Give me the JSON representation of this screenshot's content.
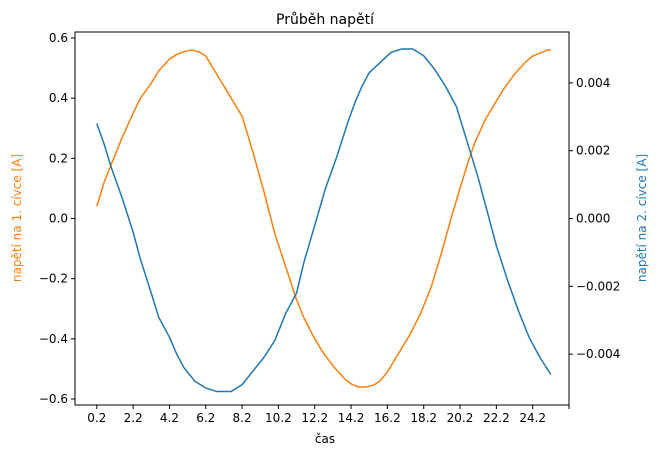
{
  "chart_data": {
    "type": "line",
    "title": "Průběh napětí",
    "xlabel": "čas",
    "ylabel_left": "napětí na 1. cívce [A]",
    "ylabel_right": "napětí na 2. cívce [A]",
    "xlim": [
      -1.0,
      26.2
    ],
    "ylim_left": [
      -0.62,
      0.62
    ],
    "ylim_right": [
      -0.0055,
      0.0055
    ],
    "x_ticks": [
      0.2,
      2.2,
      4.2,
      6.2,
      8.2,
      10.2,
      12.2,
      14.2,
      16.2,
      18.2,
      20.2,
      22.2,
      24.2,
      26.2
    ],
    "x_tick_labels": [
      "0.2",
      "2.2",
      "4.2",
      "6.2",
      "8.2",
      "10.2",
      "12.2",
      "14.2",
      "16.2",
      "18.2",
      "20.2",
      "22.2",
      "24.2",
      ""
    ],
    "y_ticks_left": [
      -0.6,
      -0.4,
      -0.2,
      0.0,
      0.2,
      0.4,
      0.6
    ],
    "y_tick_labels_left": [
      "−0.6",
      "−0.4",
      "−0.2",
      "0.0",
      "0.2",
      "0.4",
      "0.6"
    ],
    "y_ticks_right": [
      -0.004,
      -0.002,
      0.0,
      0.002,
      0.004
    ],
    "y_tick_labels_right": [
      "−0.004",
      "−0.002",
      "0.000",
      "0.002",
      "0.004"
    ],
    "grid": false,
    "colors": {
      "series1": "#ff7f0e",
      "series2": "#1f77b4"
    },
    "series": [
      {
        "axis": "left",
        "color": "#ff7f0e",
        "x": [
          0.2,
          0.6,
          1.0,
          1.6,
          2.2,
          2.6,
          3.2,
          3.6,
          4.2,
          4.6,
          5.0,
          5.4,
          5.8,
          6.2,
          6.6,
          7.0,
          7.6,
          8.2,
          8.8,
          9.4,
          10.0,
          10.6,
          11.2,
          11.6,
          12.2,
          12.6,
          13.2,
          13.8,
          14.2,
          14.6,
          15.0,
          15.4,
          15.8,
          16.2,
          16.8,
          17.4,
          18.0,
          18.6,
          19.2,
          19.8,
          20.2,
          20.6,
          21.0,
          21.6,
          22.2,
          22.6,
          23.2,
          23.8,
          24.2,
          24.6,
          25.0,
          25.2
        ],
        "y": [
          0.04,
          0.12,
          0.18,
          0.27,
          0.35,
          0.4,
          0.45,
          0.49,
          0.53,
          0.545,
          0.555,
          0.56,
          0.555,
          0.54,
          0.5,
          0.46,
          0.4,
          0.34,
          0.22,
          0.09,
          -0.05,
          -0.16,
          -0.27,
          -0.33,
          -0.4,
          -0.44,
          -0.49,
          -0.53,
          -0.55,
          -0.56,
          -0.56,
          -0.555,
          -0.54,
          -0.51,
          -0.45,
          -0.39,
          -0.32,
          -0.23,
          -0.11,
          0.02,
          0.1,
          0.18,
          0.25,
          0.33,
          0.39,
          0.43,
          0.48,
          0.52,
          0.54,
          0.55,
          0.56,
          0.56
        ]
      },
      {
        "axis": "right",
        "color": "#1f77b4",
        "x": [
          0.2,
          0.6,
          1.0,
          1.6,
          2.2,
          2.6,
          3.2,
          3.6,
          4.2,
          4.6,
          5.0,
          5.6,
          6.2,
          6.8,
          7.6,
          8.2,
          8.8,
          9.4,
          10.0,
          10.6,
          11.2,
          11.6,
          12.2,
          12.8,
          13.4,
          14.0,
          14.4,
          14.8,
          15.2,
          15.8,
          16.4,
          17.0,
          17.6,
          18.2,
          18.8,
          19.4,
          20.0,
          20.4,
          20.8,
          21.2,
          21.6,
          22.2,
          22.8,
          23.4,
          24.0,
          24.6,
          25.2
        ],
        "y": [
          0.0028,
          0.0022,
          0.0015,
          0.0006,
          -0.0004,
          -0.0012,
          -0.0022,
          -0.0029,
          -0.0035,
          -0.004,
          -0.0044,
          -0.0048,
          -0.005,
          -0.0051,
          -0.0051,
          -0.0049,
          -0.0045,
          -0.0041,
          -0.0036,
          -0.0028,
          -0.0022,
          -0.0013,
          -0.0002,
          0.0009,
          0.0018,
          0.0028,
          0.0034,
          0.0039,
          0.0043,
          0.0046,
          0.0049,
          0.005,
          0.005,
          0.0048,
          0.0044,
          0.0039,
          0.0033,
          0.0026,
          0.0019,
          0.0012,
          0.0004,
          -0.0008,
          -0.0018,
          -0.0027,
          -0.0035,
          -0.0041,
          -0.0046
        ]
      }
    ]
  }
}
